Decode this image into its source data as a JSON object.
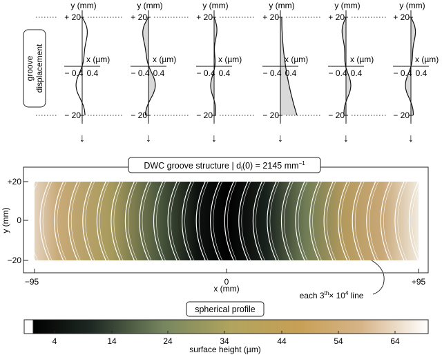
{
  "groove_panels": {
    "y_label": "y (mm)",
    "x_label": "x (µm)",
    "y_top_tick": "+ 20",
    "y_bottom_tick": "− 20",
    "x_neg_tick": "− 0.4",
    "x_pos_tick": "0.4",
    "side_label_line1": "groove",
    "side_label_line2": "displacement",
    "count": 6,
    "arrow_glyph": "↓"
  },
  "structure_plot": {
    "title_prefix": "DWC groove structure | d",
    "title_sub": "l",
    "title_mid": "(0) = 2145 mm",
    "title_sup": "−1",
    "y_label": "y (mm)",
    "x_label": "x (mm)",
    "y_ticks": [
      "+20",
      "0",
      "−20"
    ],
    "x_ticks": [
      "−95",
      "0",
      "+95"
    ],
    "annotation_prefix": "each 3",
    "annotation_sup1": "th",
    "annotation_mid": "× 10",
    "annotation_sup2": "4",
    "annotation_suffix": " line"
  },
  "profile_label": "spherical profile",
  "colorbar": {
    "ticks": [
      "4",
      "14",
      "24",
      "34",
      "44",
      "54",
      "64"
    ],
    "label": "surface height (µm)",
    "colors": [
      "#000000",
      "#2e3830",
      "#76865f",
      "#b8a65e",
      "#c9a157",
      "#d7b587",
      "#ffffff"
    ]
  },
  "chart_data": {
    "type": "heatmap",
    "title": "DWC groove structure | d_l(0) = 2145 mm^-1",
    "xlabel": "x (mm)",
    "ylabel": "y (mm)",
    "xlim": [
      -95,
      95
    ],
    "ylim": [
      -20,
      20
    ],
    "colorbar_label": "surface height (µm)",
    "colorbar_ticks": [
      4,
      14,
      24,
      34,
      44,
      54,
      64
    ]
  }
}
